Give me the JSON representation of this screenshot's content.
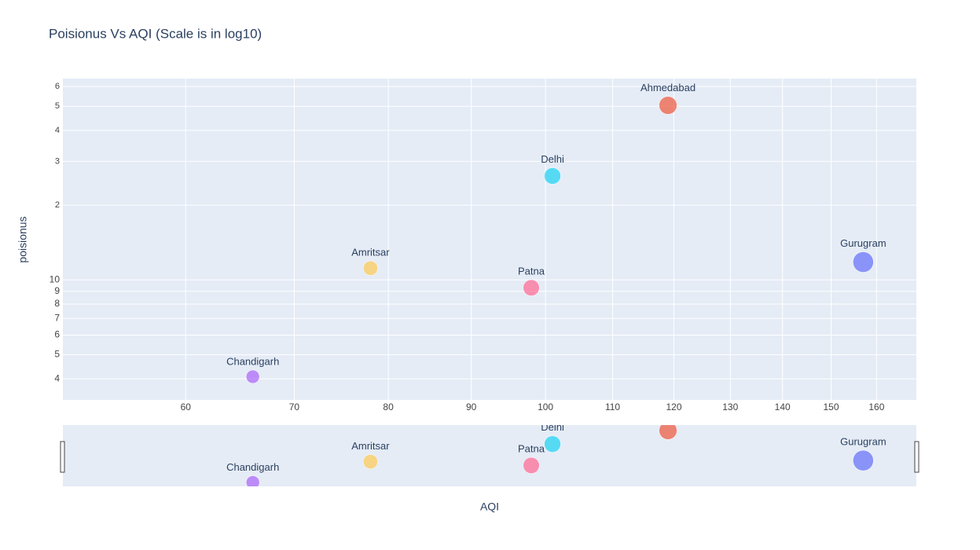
{
  "chart_data": {
    "type": "scatter",
    "title": "Poisionus Vs AQI (Scale is in log10)",
    "x_label": "AQI",
    "y_label": "poisionus",
    "text": [
      "Ahmedabad",
      "Delhi",
      "Gurugram",
      "Amritsar",
      "Patna",
      "Chandigarh"
    ],
    "x": [
      119,
      101,
      157,
      78,
      98,
      66
    ],
    "y": [
      50.4,
      26.2,
      11.8,
      11.15,
      9.3,
      4.08
    ],
    "sizes": [
      119,
      101,
      157,
      78,
      98,
      66
    ],
    "colors": [
      "#EF553B",
      "#19d3f3",
      "#636efa",
      "#FECB52",
      "#FF6692",
      "#AB63FA"
    ],
    "xlog": true,
    "ylog": true,
    "xlim": [
      50.4,
      169.3
    ],
    "ylim": [
      3.29,
      64.6
    ],
    "xticks": [
      60,
      70,
      80,
      90,
      100,
      110,
      120,
      130,
      140,
      150,
      160
    ],
    "yticks": [
      {
        "value": 60,
        "label": "6"
      },
      {
        "value": 50,
        "label": "5"
      },
      {
        "value": 40,
        "label": "4"
      },
      {
        "value": 30,
        "label": "3"
      },
      {
        "value": 20,
        "label": "2"
      },
      10,
      9,
      8,
      7,
      6,
      5,
      4
    ],
    "grid": true,
    "rangeslider": true
  }
}
